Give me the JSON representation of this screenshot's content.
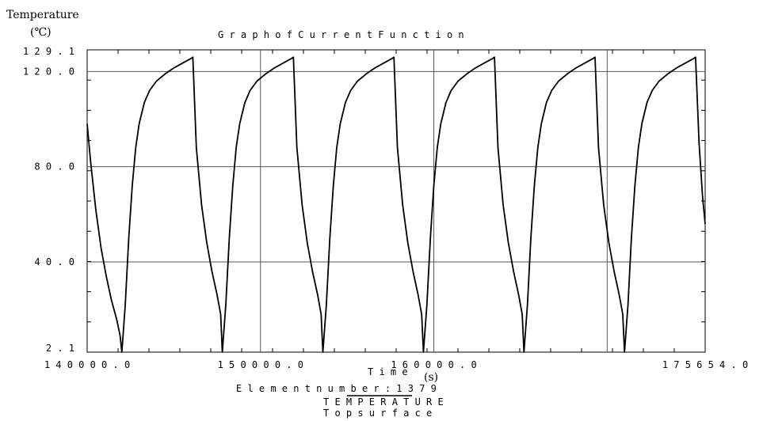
{
  "chart_data": {
    "type": "line",
    "title": "G r a p h   o f   C u r r e n t   F u n c t i o n",
    "ylabel": "Temperature",
    "yunit": "(℃)",
    "xlabel": "T i m e",
    "xunit": "(s)",
    "xlim": [
      140000.0,
      175654.0
    ],
    "ylim": [
      2.1,
      129.1
    ],
    "yticks": [
      {
        "value": 129.1,
        "label": "1 2 9 . 1"
      },
      {
        "value": 120.0,
        "label": "1 2 0 . 0"
      },
      {
        "value": 80.0,
        "label": "8 0 . 0"
      },
      {
        "value": 40.0,
        "label": "4 0 . 0"
      },
      {
        "value": 2.1,
        "label": "2 . 1"
      }
    ],
    "xticks": [
      {
        "value": 140000.0,
        "label": "1 4 0 0 0 0 . 0"
      },
      {
        "value": 150000.0,
        "label": "1 5 0 0 0 0 . 0"
      },
      {
        "value": 160000.0,
        "label": "1 6 0 0 0 0 . 0"
      },
      {
        "value": 175654.0,
        "label": "1 7 5 6 5 4 . 0"
      }
    ],
    "vgrid": [
      150000.0,
      160000.0,
      170000.0
    ],
    "hgrid": [
      120.0,
      80.0,
      40.0
    ],
    "footer": [
      "E l e m e n t   n u m b e r :   1 3 7 9",
      "T E M P E R A T U R E",
      "T o p   s u r f a c e"
    ],
    "series": [
      {
        "points": [
          [
            140000,
            98
          ],
          [
            140200,
            82
          ],
          [
            140500,
            62
          ],
          [
            140800,
            46
          ],
          [
            141100,
            34
          ],
          [
            141400,
            24
          ],
          [
            141700,
            16
          ],
          [
            141900,
            9
          ],
          [
            142000,
            2.1
          ],
          [
            142200,
            22
          ],
          [
            142400,
            50
          ],
          [
            142600,
            72
          ],
          [
            142800,
            88
          ],
          [
            143000,
            98
          ],
          [
            143300,
            107
          ],
          [
            143600,
            112
          ],
          [
            144000,
            116
          ],
          [
            144500,
            119
          ],
          [
            145000,
            121.5
          ],
          [
            145500,
            123.5
          ],
          [
            146000,
            125.5
          ],
          [
            146100,
            126
          ],
          [
            146300,
            88
          ],
          [
            146600,
            64
          ],
          [
            146900,
            48
          ],
          [
            147200,
            36
          ],
          [
            147500,
            26
          ],
          [
            147700,
            18
          ],
          [
            147800,
            2.1
          ],
          [
            148000,
            22
          ],
          [
            148200,
            50
          ],
          [
            148400,
            72
          ],
          [
            148600,
            88
          ],
          [
            148800,
            98
          ],
          [
            149100,
            107
          ],
          [
            149400,
            112
          ],
          [
            149800,
            116
          ],
          [
            150300,
            119
          ],
          [
            150800,
            121.5
          ],
          [
            151300,
            123.5
          ],
          [
            151800,
            125.5
          ],
          [
            151900,
            126
          ],
          [
            152100,
            88
          ],
          [
            152400,
            64
          ],
          [
            152700,
            48
          ],
          [
            153000,
            36
          ],
          [
            153300,
            26
          ],
          [
            153500,
            18
          ],
          [
            153600,
            2.1
          ],
          [
            153800,
            22
          ],
          [
            154000,
            50
          ],
          [
            154200,
            72
          ],
          [
            154400,
            88
          ],
          [
            154600,
            98
          ],
          [
            154900,
            107
          ],
          [
            155200,
            112
          ],
          [
            155600,
            116
          ],
          [
            156100,
            119
          ],
          [
            156600,
            121.5
          ],
          [
            157100,
            123.5
          ],
          [
            157600,
            125.5
          ],
          [
            157700,
            126
          ],
          [
            157900,
            88
          ],
          [
            158200,
            64
          ],
          [
            158500,
            48
          ],
          [
            158800,
            36
          ],
          [
            159100,
            26
          ],
          [
            159300,
            18
          ],
          [
            159400,
            2.1
          ],
          [
            159600,
            22
          ],
          [
            159800,
            50
          ],
          [
            160000,
            72
          ],
          [
            160200,
            88
          ],
          [
            160400,
            98
          ],
          [
            160700,
            107
          ],
          [
            161000,
            112
          ],
          [
            161400,
            116
          ],
          [
            161900,
            119
          ],
          [
            162400,
            121.5
          ],
          [
            162900,
            123.5
          ],
          [
            163400,
            125.5
          ],
          [
            163500,
            126
          ],
          [
            163700,
            88
          ],
          [
            164000,
            64
          ],
          [
            164300,
            48
          ],
          [
            164600,
            36
          ],
          [
            164900,
            26
          ],
          [
            165100,
            18
          ],
          [
            165200,
            2.1
          ],
          [
            165400,
            22
          ],
          [
            165600,
            50
          ],
          [
            165800,
            72
          ],
          [
            166000,
            88
          ],
          [
            166200,
            98
          ],
          [
            166500,
            107
          ],
          [
            166800,
            112
          ],
          [
            167200,
            116
          ],
          [
            167700,
            119
          ],
          [
            168200,
            121.5
          ],
          [
            168700,
            123.5
          ],
          [
            169200,
            125.5
          ],
          [
            169300,
            126
          ],
          [
            169500,
            88
          ],
          [
            169800,
            64
          ],
          [
            170100,
            48
          ],
          [
            170400,
            36
          ],
          [
            170700,
            26
          ],
          [
            170900,
            18
          ],
          [
            171000,
            2.1
          ],
          [
            171200,
            22
          ],
          [
            171400,
            50
          ],
          [
            171600,
            72
          ],
          [
            171800,
            88
          ],
          [
            172000,
            98
          ],
          [
            172300,
            107
          ],
          [
            172600,
            112
          ],
          [
            173000,
            116
          ],
          [
            173500,
            119
          ],
          [
            174000,
            121.5
          ],
          [
            174500,
            123.5
          ],
          [
            175000,
            125.5
          ],
          [
            175100,
            126
          ],
          [
            175300,
            90
          ],
          [
            175500,
            68
          ],
          [
            175654,
            56
          ]
        ]
      }
    ]
  }
}
